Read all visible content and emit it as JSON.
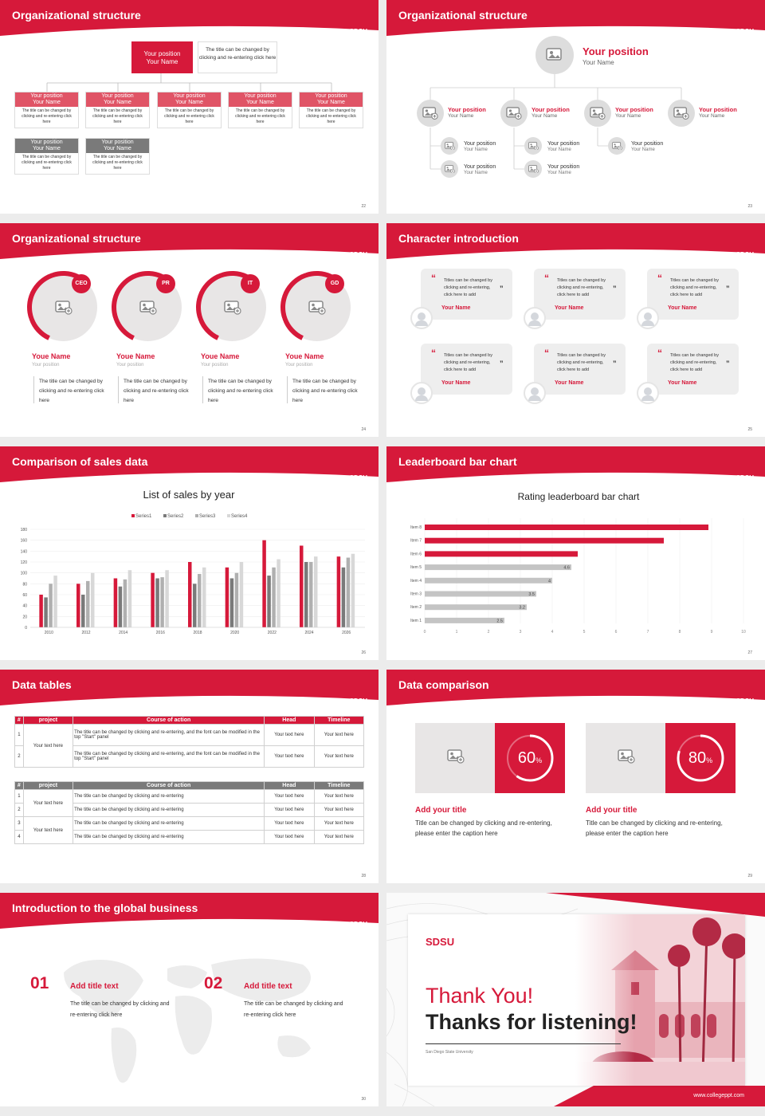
{
  "theme": {
    "accent": "#d6193a",
    "gray": "#7a7a7a"
  },
  "logo": "SDSU",
  "slide1": {
    "title": "Organizational structure",
    "top_box": "Your position\nYour Name",
    "top_desc": "The title can be changed by clicking and re-entering click here",
    "box_title": "Your position",
    "box_name": "Your Name",
    "box_text": "The title can be changed by clicking and re-entering click here",
    "page": "22"
  },
  "slide2": {
    "title": "Organizational structure",
    "main_pos": "Your position",
    "main_name": "Your Name",
    "pos": "Your position",
    "name": "Your Name",
    "page": "23"
  },
  "slide3": {
    "title": "Organizational structure",
    "badges": [
      "CEO",
      "PR",
      "IT",
      "GD"
    ],
    "name": "Youe Name",
    "pos": "Your position",
    "text": "The title can be changed by clicking and re-entering click here",
    "page": "24"
  },
  "slide4": {
    "title": "Character introduction",
    "quote": "Titles can be changed by clicking and re-entering, click here to add",
    "name": "Your Name",
    "page": "25"
  },
  "slide5": {
    "title": "Comparison of sales data",
    "page": "26"
  },
  "slide6": {
    "title": "Leaderboard bar chart",
    "page": "27"
  },
  "slide7": {
    "title": "Data tables",
    "page": "28",
    "t1_headers": [
      "#",
      "project",
      "Course of action",
      "Head",
      "Timeline"
    ],
    "t1_rows": [
      [
        "1",
        "Your text here",
        "The title can be changed by clicking and re-entering, and the font can be modified in the top \"Start\" panel",
        "Your text here",
        "Your text here"
      ],
      [
        "2",
        "",
        "The title can be changed by clicking and re-entering, and the font can be modified in the top \"Start\" panel",
        "Your text here",
        "Your text here"
      ]
    ],
    "t2_headers": [
      "#",
      "project",
      "Course of action",
      "Head",
      "Timeline"
    ],
    "t2_rows": [
      [
        "1",
        "Your text here",
        "The title can be changed by clicking and re-entering",
        "Your text here",
        "Your text here"
      ],
      [
        "2",
        "",
        "The title can be changed by clicking and re-entering",
        "Your text here",
        "Your text here"
      ],
      [
        "3",
        "Your text here",
        "The title can be changed by clicking and re-entering",
        "Your text here",
        "Your text here"
      ],
      [
        "4",
        "",
        "The title can be changed by clicking and re-entering",
        "Your text here",
        "Your text here"
      ]
    ]
  },
  "slide8": {
    "title": "Data comparison",
    "page": "29",
    "cards": [
      {
        "pct": "60",
        "value": 0.6,
        "title": "Add your title",
        "text": "Title can be changed by clicking and re-entering, please enter the caption here"
      },
      {
        "pct": "80",
        "value": 0.8,
        "title": "Add your title",
        "text": "Title can be changed by clicking and re-entering, please enter the caption here"
      }
    ]
  },
  "slide9": {
    "title": "Introduction to the global business",
    "page": "30",
    "items": [
      {
        "num": "01",
        "title": "Add title text",
        "text": "The title can be changed by clicking and re-entering click here"
      },
      {
        "num": "02",
        "title": "Add title text",
        "text": "The title can be changed by clicking and re-entering click here"
      }
    ]
  },
  "slide10": {
    "logo": "SDSU",
    "thank": "Thank You!",
    "thanks": "Thanks for listening!",
    "univ": "San Diego State University",
    "url": "www.collegeppt.com"
  },
  "chart_data": [
    {
      "type": "bar",
      "title": "List of sales by year",
      "categories": [
        "2010",
        "2012",
        "2014",
        "2016",
        "2018",
        "2020",
        "2022",
        "2024",
        "2026"
      ],
      "series": [
        {
          "name": "Series1",
          "values": [
            60,
            80,
            90,
            100,
            120,
            110,
            160,
            150,
            130
          ]
        },
        {
          "name": "Series2",
          "values": [
            55,
            60,
            75,
            90,
            80,
            90,
            95,
            120,
            110
          ]
        },
        {
          "name": "Series3",
          "values": [
            80,
            85,
            88,
            92,
            98,
            100,
            110,
            120,
            128
          ]
        },
        {
          "name": "Series4",
          "values": [
            95,
            100,
            105,
            105,
            110,
            120,
            125,
            130,
            135
          ]
        }
      ],
      "ylim": [
        0,
        180
      ],
      "yticks": [
        "0",
        "20",
        "40",
        "60",
        "80",
        "100",
        "120",
        "140",
        "160",
        "180"
      ],
      "legend": "top",
      "colors": [
        "#d6193a",
        "#7a7a7a",
        "#b0b0b0",
        "#d8d8d8"
      ]
    },
    {
      "type": "bar",
      "orientation": "horizontal",
      "title": "Rating leaderboard bar chart",
      "categories": [
        "Item 1",
        "Item 2",
        "Item 3",
        "Item 4",
        "Item 5",
        "Item 6",
        "Item 7",
        "Item 8"
      ],
      "values": [
        2.5,
        3.2,
        3.5,
        4,
        4.6,
        4.8,
        7.5,
        8.9
      ],
      "labels": [
        "2.5",
        "3.2",
        "3.5",
        "4",
        "4.6",
        "",
        "",
        ""
      ],
      "xlim": [
        0,
        10
      ],
      "xticks": [
        "0",
        "1",
        "2",
        "3",
        "4",
        "5",
        "6",
        "7",
        "8",
        "9",
        "10"
      ],
      "highlight_top": 3
    }
  ]
}
